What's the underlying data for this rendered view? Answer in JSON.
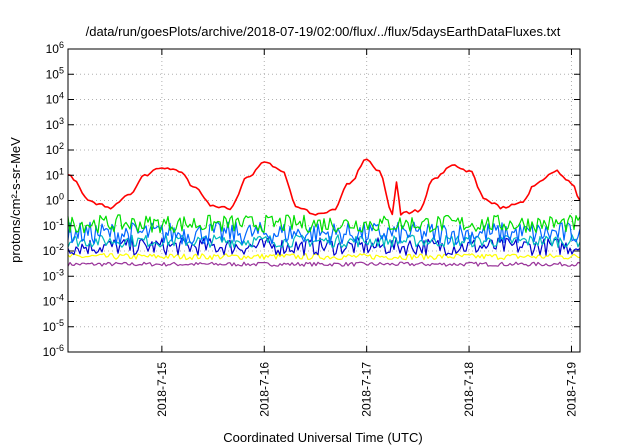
{
  "chart_data": {
    "type": "line",
    "title": "/data/run/goesPlots/archive/2018-07-19/02:00/flux/../flux/5daysEarthDataFluxes.txt",
    "xlabel": "Coordinated Universal Time (UTC)",
    "ylabel": "protons/cm²-s-sr-MeV",
    "y_scale": "log",
    "ylim": [
      1e-06,
      1000000.0
    ],
    "xlim": [
      "2018-07-14 02:00",
      "2018-07-19 02:00"
    ],
    "x_tick_labels": [
      "2018-7-15",
      "2018-7-16",
      "2018-7-17",
      "2018-7-18",
      "2018-7-19"
    ],
    "y_tick_labels": [
      "10-6",
      "10-5",
      "10-4",
      "10-3",
      "10-2",
      "10-1",
      "100",
      "101",
      "102",
      "103",
      "104",
      "105",
      "106"
    ],
    "grid": true,
    "series": [
      {
        "color": "#ff0000",
        "x": [
          "2018-07-14 02:00",
          "2018-07-14 08:00",
          "2018-07-14 12:00",
          "2018-07-14 16:00",
          "2018-07-14 20:00",
          "2018-07-15 00:00",
          "2018-07-15 04:00",
          "2018-07-15 08:00",
          "2018-07-15 12:00",
          "2018-07-15 16:00",
          "2018-07-15 20:00",
          "2018-07-16 00:00",
          "2018-07-16 04:00",
          "2018-07-16 08:00",
          "2018-07-16 12:00",
          "2018-07-16 16:00",
          "2018-07-16 20:00",
          "2018-07-17 00:00",
          "2018-07-17 03:00",
          "2018-07-17 06:00",
          "2018-07-17 07:00",
          "2018-07-17 08:00",
          "2018-07-17 12:00",
          "2018-07-17 16:00",
          "2018-07-17 20:00",
          "2018-07-18 00:00",
          "2018-07-18 04:00",
          "2018-07-18 08:00",
          "2018-07-18 12:00",
          "2018-07-18 16:00",
          "2018-07-18 20:00",
          "2018-07-19 00:00",
          "2018-07-19 02:00"
        ],
        "values": [
          10,
          0.8,
          0.5,
          1.5,
          10,
          20,
          15,
          3,
          0.6,
          0.5,
          8,
          35,
          15,
          0.5,
          0.3,
          0.4,
          5,
          40,
          15,
          0.3,
          6,
          0.3,
          0.4,
          8,
          25,
          15,
          1,
          0.5,
          0.8,
          5,
          15,
          5,
          1
        ]
      },
      {
        "color": "#00dd00",
        "x": [
          "2018-07-14 02:00",
          "2018-07-19 02:00"
        ],
        "values": [
          0.12,
          0.12
        ]
      },
      {
        "color": "#0066ff",
        "x": [
          "2018-07-14 02:00",
          "2018-07-19 02:00"
        ],
        "values": [
          0.05,
          0.05
        ]
      },
      {
        "color": "#00bbbb",
        "x": [
          "2018-07-14 02:00",
          "2018-07-19 02:00"
        ],
        "values": [
          0.025,
          0.025
        ]
      },
      {
        "color": "#0000cc",
        "x": [
          "2018-07-14 02:00",
          "2018-07-19 02:00"
        ],
        "values": [
          0.015,
          0.015
        ]
      },
      {
        "color": "#ffff00",
        "x": [
          "2018-07-14 02:00",
          "2018-07-19 02:00"
        ],
        "values": [
          0.006,
          0.006
        ]
      },
      {
        "color": "#993399",
        "x": [
          "2018-07-14 02:00",
          "2018-07-19 02:00"
        ],
        "values": [
          0.003,
          0.003
        ]
      }
    ]
  }
}
